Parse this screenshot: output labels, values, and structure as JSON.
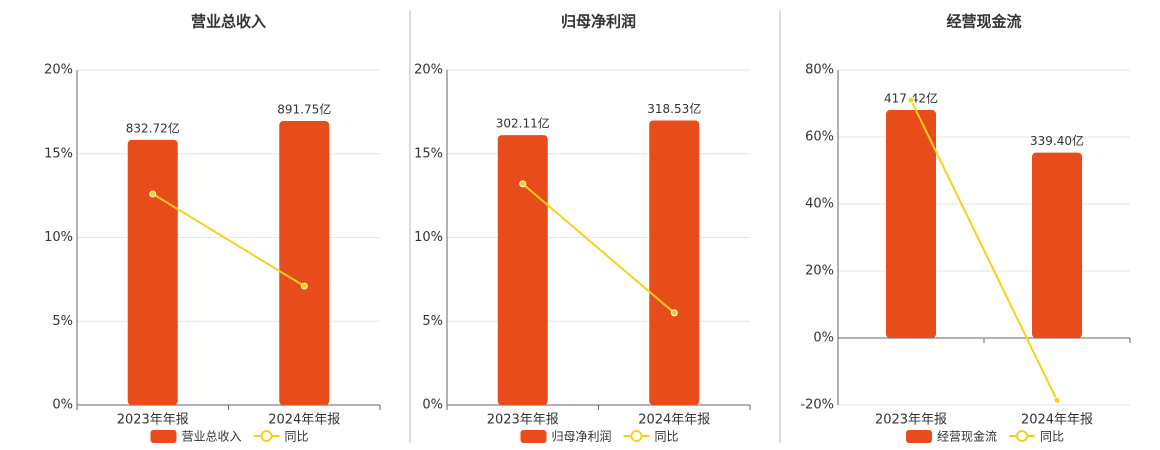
{
  "chart_data": [
    {
      "type": "bar",
      "title": "营业总收入",
      "categories": [
        "2023年年报",
        "2024年年报"
      ],
      "series": [
        {
          "name": "营业总收入",
          "color": "#e84c1a",
          "axis": "y2",
          "values": [
            832.72,
            891.75
          ],
          "value_labels": [
            "832.72亿",
            "891.75亿"
          ]
        },
        {
          "name": "同比",
          "color": "#f5d21a",
          "type": "line",
          "values": [
            12.6,
            7.1
          ]
        }
      ],
      "ylim": [
        0,
        20
      ],
      "yticks": [
        {
          "value": 0,
          "label": "0%"
        },
        {
          "value": 5,
          "label": "5%"
        },
        {
          "value": 10,
          "label": "10%"
        },
        {
          "value": 15,
          "label": "15%"
        },
        {
          "value": 20,
          "label": "20%"
        }
      ],
      "y2lim": [
        0,
        1052
      ],
      "grid": true
    },
    {
      "type": "bar",
      "title": "归母净利润",
      "categories": [
        "2023年年报",
        "2024年年报"
      ],
      "series": [
        {
          "name": "归母净利润",
          "color": "#e84c1a",
          "axis": "y2",
          "values": [
            302.11,
            318.53
          ],
          "value_labels": [
            "302.11亿",
            "318.53亿"
          ]
        },
        {
          "name": "同比",
          "color": "#f5d21a",
          "type": "line",
          "values": [
            13.2,
            5.5
          ]
        }
      ],
      "ylim": [
        0,
        20
      ],
      "yticks": [
        {
          "value": 0,
          "label": "0%"
        },
        {
          "value": 5,
          "label": "5%"
        },
        {
          "value": 10,
          "label": "10%"
        },
        {
          "value": 15,
          "label": "15%"
        },
        {
          "value": 20,
          "label": "20%"
        }
      ],
      "y2lim": [
        0,
        375
      ],
      "grid": true
    },
    {
      "type": "bar",
      "title": "经营现金流",
      "categories": [
        "2023年年报",
        "2024年年报"
      ],
      "series": [
        {
          "name": "经营现金流",
          "color": "#e84c1a",
          "axis": "y2",
          "values": [
            417.42,
            339.4
          ],
          "value_labels": [
            "417.42亿",
            "339.40亿"
          ]
        },
        {
          "name": "同比",
          "color": "#f5d21a",
          "type": "line",
          "values": [
            71,
            -18.6
          ]
        }
      ],
      "ylim": [
        -20,
        80
      ],
      "yticks": [
        {
          "value": -20,
          "label": "-20%"
        },
        {
          "value": 0,
          "label": "0%"
        },
        {
          "value": 20,
          "label": "20%"
        },
        {
          "value": 40,
          "label": "40%"
        },
        {
          "value": 60,
          "label": "60%"
        },
        {
          "value": 80,
          "label": "80%"
        }
      ],
      "y2lim": [
        -122.7,
        490.7
      ],
      "grid": true
    }
  ]
}
